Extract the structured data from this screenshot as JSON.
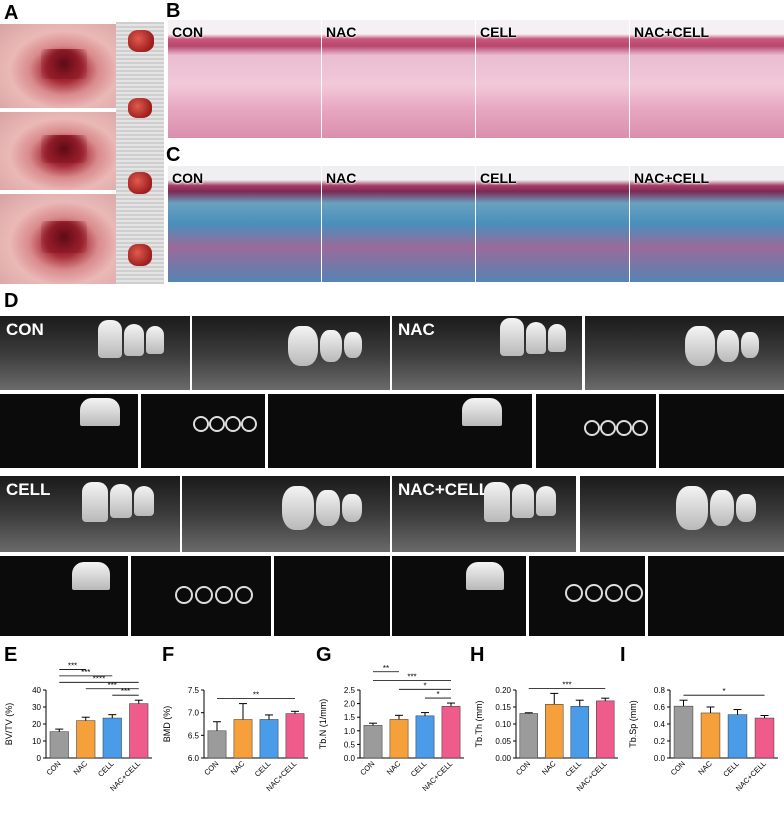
{
  "panel_letters": [
    "A",
    "B",
    "C",
    "D",
    "E",
    "F",
    "G",
    "H",
    "I"
  ],
  "groups": [
    "CON",
    "NAC",
    "CELL",
    "NAC+CELL"
  ],
  "histology_B_labels": [
    "CON",
    "NAC",
    "CELL",
    "NAC+CELL"
  ],
  "histology_C_labels": [
    "CON",
    "NAC",
    "CELL",
    "NAC+CELL"
  ],
  "ct_labels": [
    "CON",
    "NAC",
    "CELL",
    "NAC+CELL"
  ],
  "colors": {
    "CON": "#9b9b9b",
    "NAC": "#f5a03a",
    "CELL": "#4a9be8",
    "NAC+CELL": "#ef5b8b"
  },
  "chart_data": [
    {
      "type": "bar",
      "panel": "E",
      "categories": [
        "CON",
        "NAC",
        "CELL",
        "NAC+CELL"
      ],
      "values": [
        15.5,
        22,
        23.5,
        32
      ],
      "errors": [
        1.5,
        2,
        2,
        2
      ],
      "ylabel": "BV/TV (%)",
      "ylim": [
        0,
        40
      ],
      "yticks": [
        "0",
        "10",
        "20",
        "30",
        "40"
      ],
      "significance": [
        {
          "from": 0,
          "to": 1,
          "label": "***"
        },
        {
          "from": 0,
          "to": 2,
          "label": "***"
        },
        {
          "from": 0,
          "to": 3,
          "label": "****"
        },
        {
          "from": 1,
          "to": 3,
          "label": "***"
        },
        {
          "from": 2,
          "to": 3,
          "label": "***"
        }
      ]
    },
    {
      "type": "bar",
      "panel": "F",
      "categories": [
        "CON",
        "NAC",
        "CELL",
        "NAC+CELL"
      ],
      "values": [
        6.6,
        6.85,
        6.85,
        6.98
      ],
      "errors": [
        0.2,
        0.35,
        0.1,
        0.05
      ],
      "ylabel": "BMD (%)",
      "ylim": [
        6.0,
        7.5
      ],
      "yticks": [
        "6.0",
        "6.5",
        "7.0",
        "7.5"
      ],
      "significance": [
        {
          "from": 0,
          "to": 3,
          "label": "**"
        }
      ]
    },
    {
      "type": "bar",
      "panel": "G",
      "categories": [
        "CON",
        "NAC",
        "CELL",
        "NAC+CELL"
      ],
      "values": [
        1.2,
        1.42,
        1.55,
        1.9
      ],
      "errors": [
        0.08,
        0.15,
        0.12,
        0.12
      ],
      "ylabel": "Tb.N (1/mm)",
      "ylim": [
        0,
        2.5
      ],
      "yticks": [
        "0.0",
        "0.5",
        "1.0",
        "1.5",
        "2.0",
        "2.5"
      ],
      "significance": [
        {
          "from": 0,
          "to": 1,
          "label": "**"
        },
        {
          "from": 0,
          "to": 3,
          "label": "***"
        },
        {
          "from": 1,
          "to": 3,
          "label": "*"
        },
        {
          "from": 2,
          "to": 3,
          "label": "*"
        }
      ]
    },
    {
      "type": "bar",
      "panel": "H",
      "categories": [
        "CON",
        "NAC",
        "CELL",
        "NAC+CELL"
      ],
      "values": [
        0.131,
        0.158,
        0.152,
        0.168
      ],
      "errors": [
        0.002,
        0.032,
        0.018,
        0.008
      ],
      "ylabel": "Tb.Th (mm)",
      "ylim": [
        0,
        0.2
      ],
      "yticks": [
        "0.00",
        "0.05",
        "0.10",
        "0.15",
        "0.20"
      ],
      "significance": [
        {
          "from": 0,
          "to": 3,
          "label": "***"
        }
      ]
    },
    {
      "type": "bar",
      "panel": "I",
      "categories": [
        "CON",
        "NAC",
        "CELL",
        "NAC+CELL"
      ],
      "values": [
        0.61,
        0.53,
        0.51,
        0.47
      ],
      "errors": [
        0.07,
        0.07,
        0.06,
        0.03
      ],
      "ylabel": "Tb.Sp (mm)",
      "ylim": [
        0,
        0.8
      ],
      "yticks": [
        "0.0",
        "0.2",
        "0.4",
        "0.6",
        "0.8"
      ],
      "significance": [
        {
          "from": 0,
          "to": 3,
          "label": "*"
        }
      ]
    }
  ]
}
